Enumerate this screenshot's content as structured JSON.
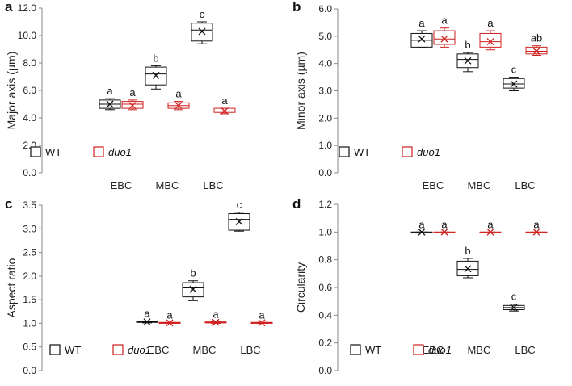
{
  "colors": {
    "wt": "#111111",
    "duo1": "#d02020",
    "axis": "#888888"
  },
  "legend": {
    "wt": "WT",
    "duo1": "duo1"
  },
  "chart_data": [
    {
      "type": "box",
      "panel": "a",
      "ylabel": "Major axis (µm)",
      "ylim": [
        0,
        12
      ],
      "yticks": [
        "0.0",
        "2.0",
        "4.0",
        "6.0",
        "8.0",
        "10.0",
        "12.0"
      ],
      "categories": [
        "EBC",
        "MBC",
        "LBC"
      ],
      "series": [
        {
          "name": "WT",
          "color": "#111111",
          "boxes": [
            {
              "min": 4.6,
              "q1": 4.7,
              "median": 5.0,
              "q3": 5.3,
              "max": 5.4,
              "mean": 5.0,
              "label": "a"
            },
            {
              "min": 6.1,
              "q1": 6.4,
              "median": 7.2,
              "q3": 7.7,
              "max": 7.8,
              "mean": 7.1,
              "label": "b"
            },
            {
              "min": 9.4,
              "q1": 9.6,
              "median": 10.4,
              "q3": 10.9,
              "max": 11.0,
              "mean": 10.3,
              "label": "c"
            }
          ]
        },
        {
          "name": "duo1",
          "color": "#d02020",
          "boxes": [
            {
              "min": 4.6,
              "q1": 4.7,
              "median": 5.0,
              "q3": 5.2,
              "max": 5.3,
              "mean": 4.9,
              "label": "a"
            },
            {
              "min": 4.6,
              "q1": 4.7,
              "median": 4.9,
              "q3": 5.1,
              "max": 5.2,
              "mean": 4.9,
              "label": "a"
            },
            {
              "min": 4.3,
              "q1": 4.4,
              "median": 4.5,
              "q3": 4.7,
              "max": 4.7,
              "mean": 4.5,
              "label": "a"
            }
          ]
        }
      ]
    },
    {
      "type": "box",
      "panel": "b",
      "ylabel": "Minor axis (µm)",
      "ylim": [
        0,
        6
      ],
      "yticks": [
        "0.0",
        "1.0",
        "2.0",
        "3.0",
        "4.0",
        "5.0",
        "6.0"
      ],
      "categories": [
        "EBC",
        "MBC",
        "LBC"
      ],
      "series": [
        {
          "name": "WT",
          "color": "#111111",
          "boxes": [
            {
              "min": 4.6,
              "q1": 4.6,
              "median": 4.85,
              "q3": 5.1,
              "max": 5.2,
              "mean": 4.9,
              "label": "a"
            },
            {
              "min": 3.7,
              "q1": 3.85,
              "median": 4.15,
              "q3": 4.35,
              "max": 4.4,
              "mean": 4.1,
              "label": "b"
            },
            {
              "min": 3.0,
              "q1": 3.1,
              "median": 3.25,
              "q3": 3.45,
              "max": 3.5,
              "mean": 3.25,
              "label": "c"
            }
          ]
        },
        {
          "name": "duo1",
          "color": "#d02020",
          "boxes": [
            {
              "min": 4.6,
              "q1": 4.7,
              "median": 4.9,
              "q3": 5.2,
              "max": 5.3,
              "mean": 4.9,
              "label": "a"
            },
            {
              "min": 4.5,
              "q1": 4.6,
              "median": 4.8,
              "q3": 5.1,
              "max": 5.2,
              "mean": 4.8,
              "label": "a"
            },
            {
              "min": 4.3,
              "q1": 4.35,
              "median": 4.45,
              "q3": 4.6,
              "max": 4.65,
              "mean": 4.45,
              "label": "ab"
            }
          ]
        }
      ]
    },
    {
      "type": "box",
      "panel": "c",
      "ylabel": "Aspect ratio",
      "ylim": [
        0,
        3.5
      ],
      "yticks": [
        "0.0",
        "0.5",
        "1.0",
        "1.5",
        "2.0",
        "2.5",
        "3.0",
        "3.5"
      ],
      "categories": [
        "EBC",
        "MBC",
        "LBC"
      ],
      "series": [
        {
          "name": "WT",
          "color": "#111111",
          "boxes": [
            {
              "min": 1.01,
              "q1": 1.02,
              "median": 1.03,
              "q3": 1.04,
              "max": 1.05,
              "mean": 1.03,
              "label": "a"
            },
            {
              "min": 1.48,
              "q1": 1.56,
              "median": 1.75,
              "q3": 1.86,
              "max": 1.9,
              "mean": 1.72,
              "label": "b"
            },
            {
              "min": 2.95,
              "q1": 2.97,
              "median": 3.2,
              "q3": 3.32,
              "max": 3.35,
              "mean": 3.15,
              "label": "c"
            }
          ]
        },
        {
          "name": "duo1",
          "color": "#d02020",
          "boxes": [
            {
              "min": 1.0,
              "q1": 1.0,
              "median": 1.01,
              "q3": 1.02,
              "max": 1.02,
              "mean": 1.01,
              "label": "a"
            },
            {
              "min": 1.0,
              "q1": 1.01,
              "median": 1.02,
              "q3": 1.03,
              "max": 1.03,
              "mean": 1.02,
              "label": "a"
            },
            {
              "min": 1.0,
              "q1": 1.0,
              "median": 1.01,
              "q3": 1.02,
              "max": 1.02,
              "mean": 1.01,
              "label": "a"
            }
          ]
        }
      ]
    },
    {
      "type": "box",
      "panel": "d",
      "ylabel": "Circularity",
      "ylim": [
        0,
        1.2
      ],
      "yticks": [
        "0.0",
        "0.2",
        "0.4",
        "0.6",
        "0.8",
        "1.0",
        "1.2"
      ],
      "categories": [
        "EBC",
        "MBC",
        "LBC"
      ],
      "series": [
        {
          "name": "WT",
          "color": "#111111",
          "boxes": [
            {
              "min": 0.995,
              "q1": 0.997,
              "median": 1.0,
              "q3": 1.0,
              "max": 1.0,
              "mean": 1.0,
              "label": "a"
            },
            {
              "min": 0.67,
              "q1": 0.685,
              "median": 0.73,
              "q3": 0.79,
              "max": 0.81,
              "mean": 0.735,
              "label": "b"
            },
            {
              "min": 0.43,
              "q1": 0.44,
              "median": 0.455,
              "q3": 0.47,
              "max": 0.48,
              "mean": 0.455,
              "label": "c"
            }
          ]
        },
        {
          "name": "duo1",
          "color": "#d02020",
          "boxes": [
            {
              "min": 0.995,
              "q1": 0.997,
              "median": 1.0,
              "q3": 1.0,
              "max": 1.0,
              "mean": 1.0,
              "label": "a"
            },
            {
              "min": 0.995,
              "q1": 0.997,
              "median": 1.0,
              "q3": 1.0,
              "max": 1.0,
              "mean": 1.0,
              "label": "a"
            },
            {
              "min": 0.995,
              "q1": 0.997,
              "median": 1.0,
              "q3": 1.0,
              "max": 1.0,
              "mean": 1.0,
              "label": "a"
            }
          ]
        }
      ]
    }
  ]
}
